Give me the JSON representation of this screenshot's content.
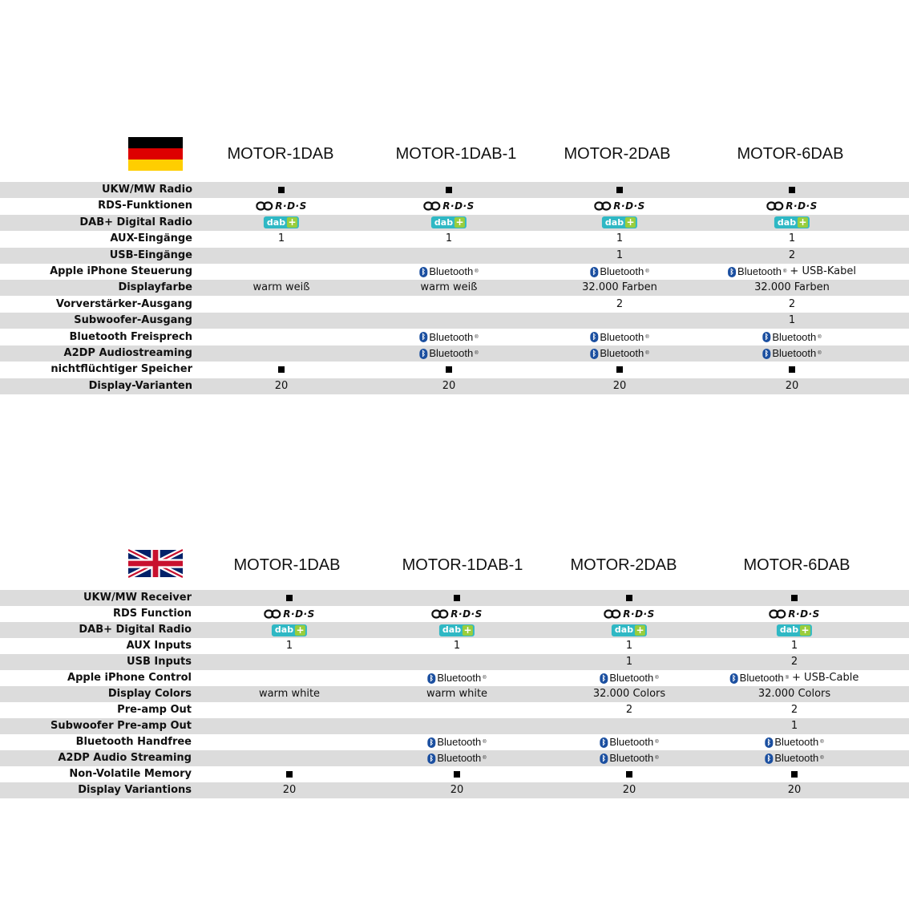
{
  "colors": {
    "row_shade": "#dcdcdc",
    "bluetooth_blue": "#1b4fa0",
    "dab_teal": "#2fb8c4",
    "dab_green": "#9acd3c"
  },
  "logos": {
    "rds_text": "R·D·S",
    "dab_text": "dab",
    "dab_plus": "+",
    "bluetooth_text": "Bluetooth"
  },
  "sections": [
    {
      "flag": "germany-flag",
      "models": [
        "MOTOR-1DAB",
        "MOTOR-1DAB-1",
        "MOTOR-2DAB",
        "MOTOR-6DAB"
      ],
      "rows": [
        {
          "label": "UKW/MW Radio",
          "cells": [
            {
              "t": "square"
            },
            {
              "t": "square"
            },
            {
              "t": "square"
            },
            {
              "t": "square"
            }
          ]
        },
        {
          "label": "RDS-Funktionen",
          "cells": [
            {
              "t": "rds"
            },
            {
              "t": "rds"
            },
            {
              "t": "rds"
            },
            {
              "t": "rds"
            }
          ]
        },
        {
          "label": "DAB+ Digital Radio",
          "cells": [
            {
              "t": "dab"
            },
            {
              "t": "dab"
            },
            {
              "t": "dab"
            },
            {
              "t": "dab"
            }
          ]
        },
        {
          "label": "AUX-Eingänge",
          "cells": [
            {
              "t": "text",
              "v": "1"
            },
            {
              "t": "text",
              "v": "1"
            },
            {
              "t": "text",
              "v": "1"
            },
            {
              "t": "text",
              "v": "1"
            }
          ]
        },
        {
          "label": "USB-Eingänge",
          "cells": [
            {
              "t": "empty"
            },
            {
              "t": "empty"
            },
            {
              "t": "text",
              "v": "1"
            },
            {
              "t": "text",
              "v": "2"
            }
          ]
        },
        {
          "label": "Apple iPhone Steuerung",
          "cells": [
            {
              "t": "empty"
            },
            {
              "t": "bt"
            },
            {
              "t": "bt"
            },
            {
              "t": "bt",
              "extra": "+ USB-Kabel"
            }
          ]
        },
        {
          "label": "Displayfarbe",
          "cells": [
            {
              "t": "text",
              "v": "warm weiß"
            },
            {
              "t": "text",
              "v": "warm weiß"
            },
            {
              "t": "text",
              "v": "32.000 Farben"
            },
            {
              "t": "text",
              "v": "32.000 Farben"
            }
          ]
        },
        {
          "label": "Vorverstärker-Ausgang",
          "cells": [
            {
              "t": "empty"
            },
            {
              "t": "empty"
            },
            {
              "t": "text",
              "v": "2"
            },
            {
              "t": "text",
              "v": "2"
            }
          ]
        },
        {
          "label": "Subwoofer-Ausgang",
          "cells": [
            {
              "t": "empty"
            },
            {
              "t": "empty"
            },
            {
              "t": "empty"
            },
            {
              "t": "text",
              "v": "1"
            }
          ]
        },
        {
          "label": "Bluetooth Freisprech",
          "cells": [
            {
              "t": "empty"
            },
            {
              "t": "bt"
            },
            {
              "t": "bt"
            },
            {
              "t": "bt"
            }
          ]
        },
        {
          "label": "A2DP Audiostreaming",
          "cells": [
            {
              "t": "empty"
            },
            {
              "t": "bt"
            },
            {
              "t": "bt"
            },
            {
              "t": "bt"
            }
          ]
        },
        {
          "label": "nichtflüchtiger Speicher",
          "cells": [
            {
              "t": "square"
            },
            {
              "t": "square"
            },
            {
              "t": "square"
            },
            {
              "t": "square"
            }
          ]
        },
        {
          "label": "Display-Varianten",
          "cells": [
            {
              "t": "text",
              "v": "20"
            },
            {
              "t": "text",
              "v": "20"
            },
            {
              "t": "text",
              "v": "20"
            },
            {
              "t": "text",
              "v": "20"
            }
          ]
        }
      ]
    },
    {
      "flag": "uk-flag",
      "models": [
        "MOTOR-1DAB",
        "MOTOR-1DAB-1",
        "MOTOR-2DAB",
        "MOTOR-6DAB"
      ],
      "rows": [
        {
          "label": "UKW/MW Receiver",
          "cells": [
            {
              "t": "square"
            },
            {
              "t": "square"
            },
            {
              "t": "square"
            },
            {
              "t": "square"
            }
          ]
        },
        {
          "label": "RDS Function",
          "cells": [
            {
              "t": "rds"
            },
            {
              "t": "rds"
            },
            {
              "t": "rds"
            },
            {
              "t": "rds"
            }
          ]
        },
        {
          "label": "DAB+ Digital Radio",
          "cells": [
            {
              "t": "dab"
            },
            {
              "t": "dab"
            },
            {
              "t": "dab"
            },
            {
              "t": "dab"
            }
          ]
        },
        {
          "label": "AUX Inputs",
          "cells": [
            {
              "t": "text",
              "v": "1"
            },
            {
              "t": "text",
              "v": "1"
            },
            {
              "t": "text",
              "v": "1"
            },
            {
              "t": "text",
              "v": "1"
            }
          ]
        },
        {
          "label": "USB Inputs",
          "cells": [
            {
              "t": "empty"
            },
            {
              "t": "empty"
            },
            {
              "t": "text",
              "v": "1"
            },
            {
              "t": "text",
              "v": "2"
            }
          ]
        },
        {
          "label": "Apple iPhone Control",
          "cells": [
            {
              "t": "empty"
            },
            {
              "t": "bt"
            },
            {
              "t": "bt"
            },
            {
              "t": "bt",
              "extra": "+ USB-Cable"
            }
          ]
        },
        {
          "label": "Display Colors",
          "cells": [
            {
              "t": "text",
              "v": "warm white"
            },
            {
              "t": "text",
              "v": "warm white"
            },
            {
              "t": "text",
              "v": "32.000 Colors"
            },
            {
              "t": "text",
              "v": "32.000 Colors"
            }
          ]
        },
        {
          "label": "Pre-amp Out",
          "cells": [
            {
              "t": "empty"
            },
            {
              "t": "empty"
            },
            {
              "t": "text",
              "v": "2"
            },
            {
              "t": "text",
              "v": "2"
            }
          ]
        },
        {
          "label": "Subwoofer Pre-amp Out",
          "cells": [
            {
              "t": "empty"
            },
            {
              "t": "empty"
            },
            {
              "t": "empty"
            },
            {
              "t": "text",
              "v": "1"
            }
          ]
        },
        {
          "label": "Bluetooth Handfree",
          "cells": [
            {
              "t": "empty"
            },
            {
              "t": "bt"
            },
            {
              "t": "bt"
            },
            {
              "t": "bt"
            }
          ]
        },
        {
          "label": "A2DP Audio Streaming",
          "cells": [
            {
              "t": "empty"
            },
            {
              "t": "bt"
            },
            {
              "t": "bt"
            },
            {
              "t": "bt"
            }
          ]
        },
        {
          "label": "Non-Volatile Memory",
          "cells": [
            {
              "t": "square"
            },
            {
              "t": "square"
            },
            {
              "t": "square"
            },
            {
              "t": "square"
            }
          ]
        },
        {
          "label": "Display Variantions",
          "cells": [
            {
              "t": "text",
              "v": "20"
            },
            {
              "t": "text",
              "v": "20"
            },
            {
              "t": "text",
              "v": "20"
            },
            {
              "t": "text",
              "v": "20"
            }
          ]
        }
      ]
    }
  ]
}
